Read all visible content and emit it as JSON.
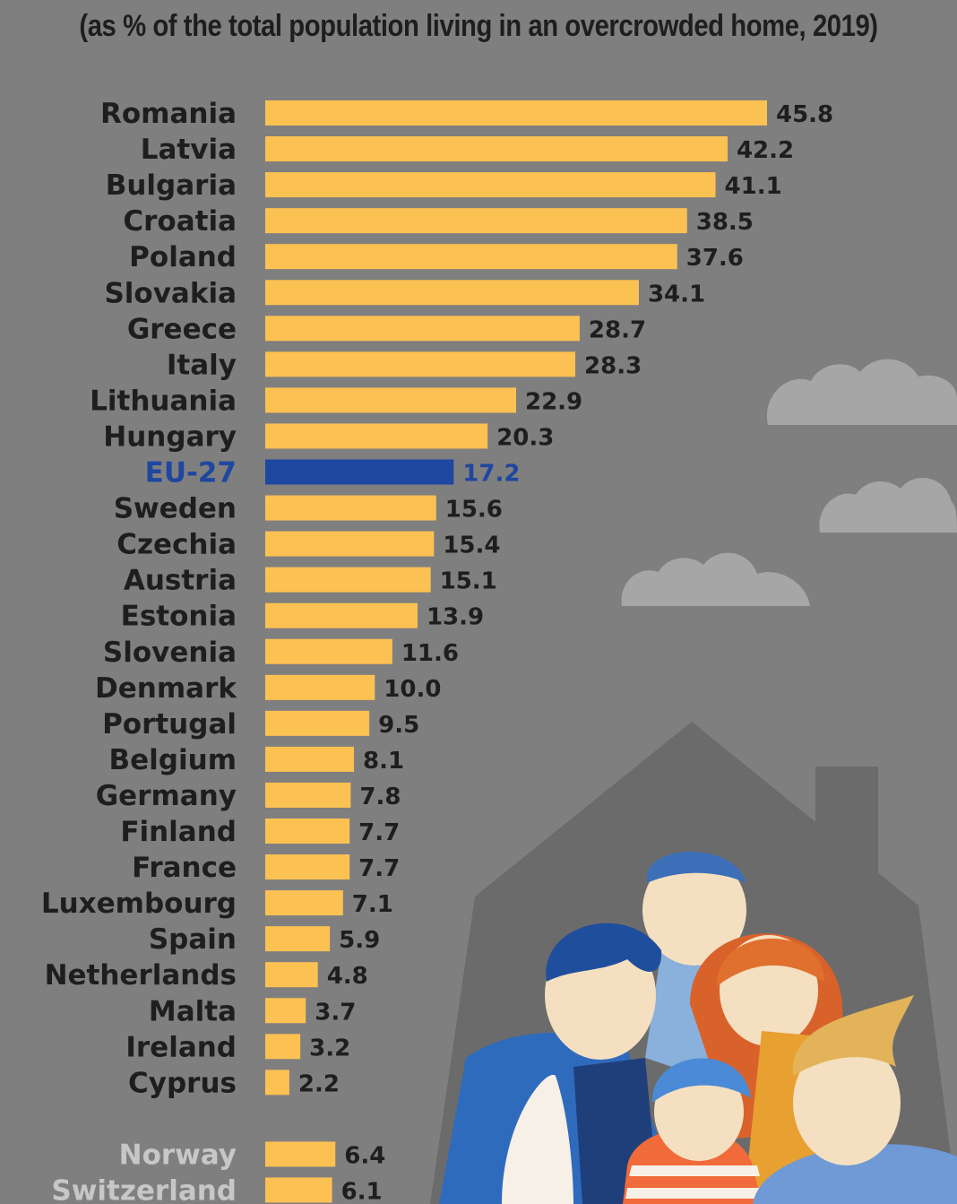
{
  "subtitle": "(as % of the total population living in an overcrowded home, 2019)",
  "colors": {
    "background": "#7f7f7f",
    "bar": "#fcc153",
    "bar_highlight": "#1e479f",
    "label": "#1e1e1e",
    "label_highlight": "#1e479f",
    "label_non_eu": "#c7c7c7",
    "house": "#6a6a6a",
    "cloud": "#a3a3a3"
  },
  "chart_data": {
    "type": "bar",
    "orientation": "horizontal",
    "title": "",
    "subtitle": "(as % of the total population living in an overcrowded home, 2019)",
    "xlabel": "",
    "ylabel": "",
    "xlim": [
      0,
      45.8
    ],
    "grid": false,
    "highlight": "EU-27",
    "non_eu": [
      "Norway",
      "Switzerland"
    ],
    "categories": [
      "Romania",
      "Latvia",
      "Bulgaria",
      "Croatia",
      "Poland",
      "Slovakia",
      "Greece",
      "Italy",
      "Lithuania",
      "Hungary",
      "EU-27",
      "Sweden",
      "Czechia",
      "Austria",
      "Estonia",
      "Slovenia",
      "Denmark",
      "Portugal",
      "Belgium",
      "Germany",
      "Finland",
      "France",
      "Luxembourg",
      "Spain",
      "Netherlands",
      "Malta",
      "Ireland",
      "Cyprus",
      "Norway",
      "Switzerland"
    ],
    "values": [
      45.8,
      42.2,
      41.1,
      38.5,
      37.6,
      34.1,
      28.7,
      28.3,
      22.9,
      20.3,
      17.2,
      15.6,
      15.4,
      15.1,
      13.9,
      11.6,
      10.0,
      9.5,
      8.1,
      7.8,
      7.7,
      7.7,
      7.1,
      5.9,
      4.8,
      3.7,
      3.2,
      2.2,
      6.4,
      6.1
    ],
    "value_labels": [
      "45.8",
      "42.2",
      "41.1",
      "38.5",
      "37.6",
      "34.1",
      "28.7",
      "28.3",
      "22.9",
      "20.3",
      "17.2",
      "15.6",
      "15.4",
      "15.1",
      "13.9",
      "11.6",
      "10.0",
      "9.5",
      "8.1",
      "7.8",
      "7.7",
      "7.7",
      "7.1",
      "5.9",
      "4.8",
      "3.7",
      "3.2",
      "2.2",
      "6.4",
      "6.1"
    ]
  }
}
